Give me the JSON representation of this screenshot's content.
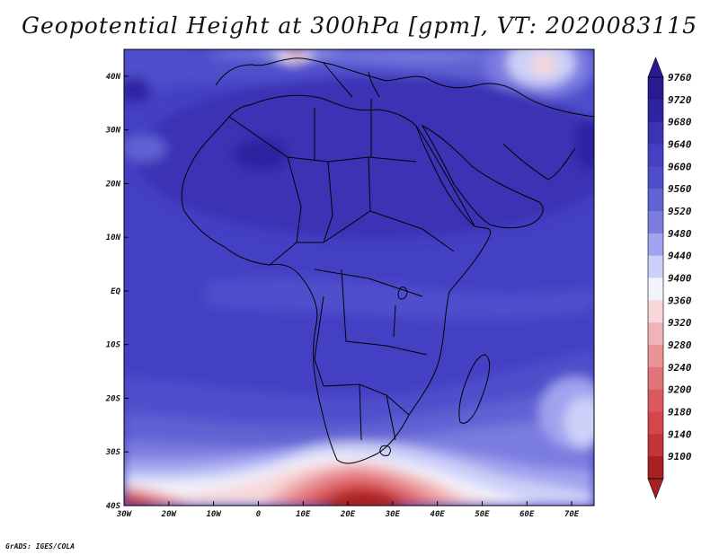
{
  "title": "Geopotential Height at 300hPa [gpm], VT: 2020083115",
  "footer": "GrADS: IGES/COLA",
  "map": {
    "lon_range": [
      -30,
      75
    ],
    "lat_range": [
      -40,
      45
    ],
    "xticks": [
      {
        "lon": -30,
        "label": "30W"
      },
      {
        "lon": -20,
        "label": "20W"
      },
      {
        "lon": -10,
        "label": "10W"
      },
      {
        "lon": 0,
        "label": "0"
      },
      {
        "lon": 10,
        "label": "10E"
      },
      {
        "lon": 20,
        "label": "20E"
      },
      {
        "lon": 30,
        "label": "30E"
      },
      {
        "lon": 40,
        "label": "40E"
      },
      {
        "lon": 50,
        "label": "50E"
      },
      {
        "lon": 60,
        "label": "60E"
      },
      {
        "lon": 70,
        "label": "70E"
      }
    ],
    "yticks": [
      {
        "lat": 40,
        "label": "40N"
      },
      {
        "lat": 30,
        "label": "30N"
      },
      {
        "lat": 20,
        "label": "20N"
      },
      {
        "lat": 10,
        "label": "10N"
      },
      {
        "lat": 0,
        "label": "EQ"
      },
      {
        "lat": -10,
        "label": "10S"
      },
      {
        "lat": -20,
        "label": "20S"
      },
      {
        "lat": -30,
        "label": "30S"
      },
      {
        "lat": -40,
        "label": "40S"
      }
    ]
  },
  "colorbar": {
    "levels": [
      {
        "value": "9760",
        "color": "#281b8f"
      },
      {
        "value": "9720",
        "color": "#2f24a0"
      },
      {
        "value": "9680",
        "color": "#3a33b4"
      },
      {
        "value": "9640",
        "color": "#4440c4"
      },
      {
        "value": "9600",
        "color": "#4f4fcc"
      },
      {
        "value": "9560",
        "color": "#6162d3"
      },
      {
        "value": "9520",
        "color": "#7a7ce0"
      },
      {
        "value": "9480",
        "color": "#a0a3ee"
      },
      {
        "value": "9440",
        "color": "#cdd0f8"
      },
      {
        "value": "9400",
        "color": "#f3f3fc"
      },
      {
        "value": "9360",
        "color": "#f6d8da"
      },
      {
        "value": "9320",
        "color": "#f0b3b6"
      },
      {
        "value": "9280",
        "color": "#ea9396"
      },
      {
        "value": "9240",
        "color": "#e27479"
      },
      {
        "value": "9200",
        "color": "#dc5a5f"
      },
      {
        "value": "9180",
        "color": "#d44649"
      },
      {
        "value": "9140",
        "color": "#c43436"
      },
      {
        "value": "9100",
        "color": "#a82022"
      }
    ]
  }
}
